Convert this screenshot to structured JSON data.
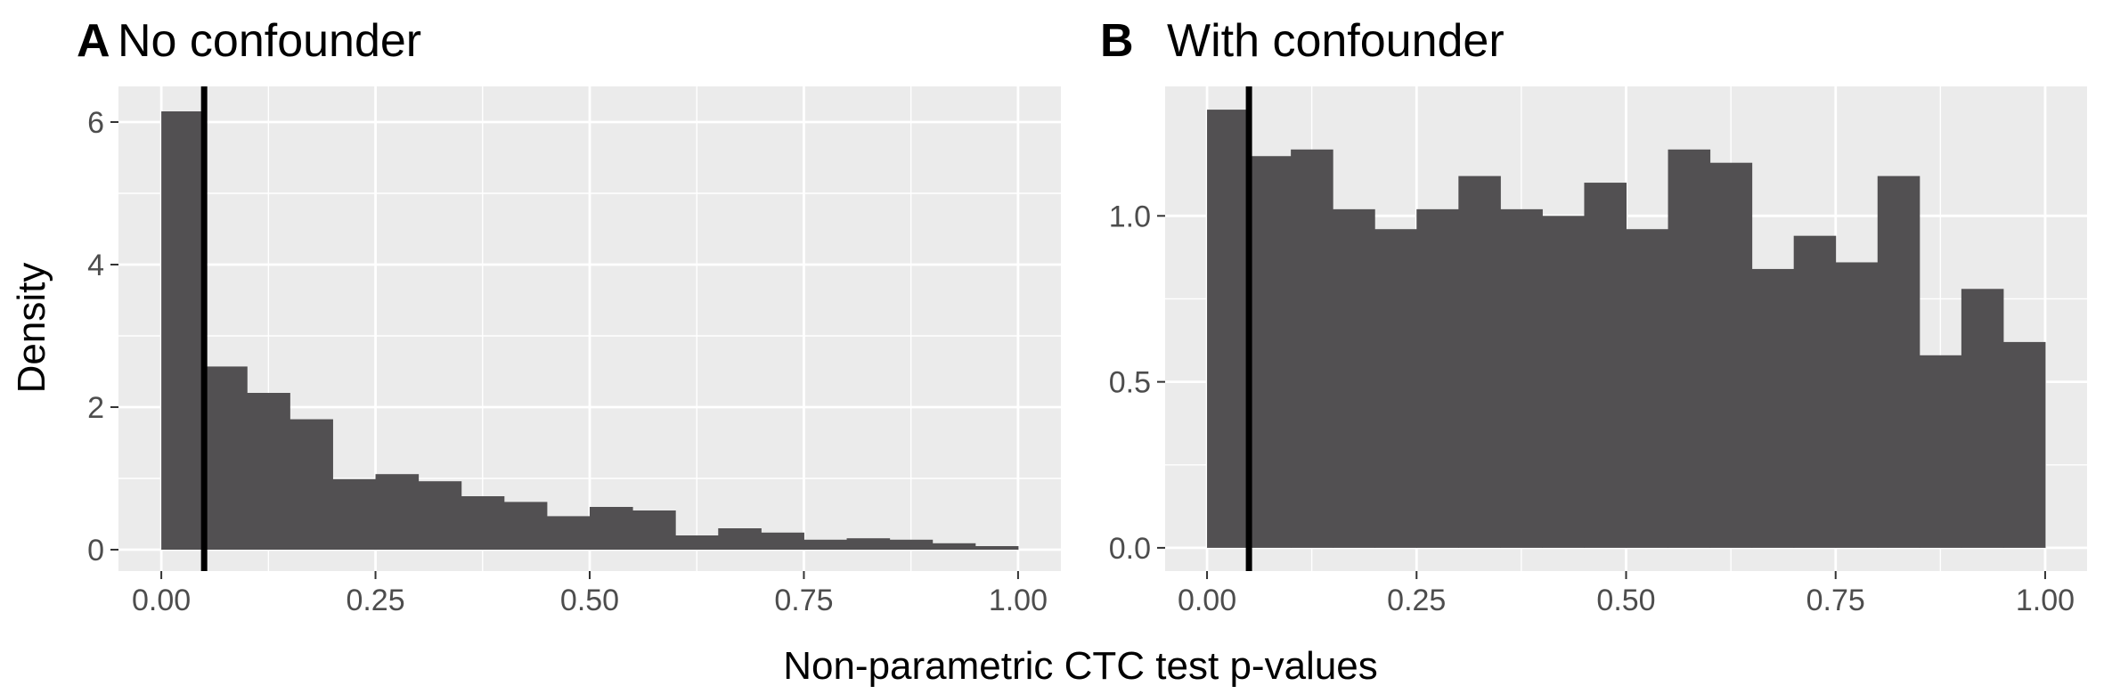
{
  "figure": {
    "xlabel": "Non-parametric CTC test p-values",
    "ylabel": "Density"
  },
  "colors": {
    "panel_background": "#ebebeb",
    "grid_major": "#ffffff",
    "bar_fill": "#525052",
    "threshold_line": "#000000",
    "tick_label": "#4d4d4d"
  },
  "chart_data": [
    {
      "type": "bar",
      "panel": "A",
      "title": "No confounder",
      "bin_width": 0.05,
      "x": [
        0.025,
        0.075,
        0.125,
        0.175,
        0.225,
        0.275,
        0.325,
        0.375,
        0.425,
        0.475,
        0.525,
        0.575,
        0.625,
        0.675,
        0.725,
        0.775,
        0.825,
        0.875,
        0.925,
        0.975
      ],
      "values": [
        6.15,
        2.57,
        2.2,
        1.83,
        0.99,
        1.06,
        0.96,
        0.75,
        0.67,
        0.47,
        0.6,
        0.55,
        0.2,
        0.3,
        0.24,
        0.14,
        0.16,
        0.14,
        0.09,
        0.05
      ],
      "vline": 0.05,
      "xlim": [
        -0.05,
        1.05
      ],
      "ylim": [
        -0.3,
        6.5
      ],
      "xticks": [
        0,
        0.25,
        0.5,
        0.75,
        1
      ],
      "xtick_labels": [
        "0.00",
        "0.25",
        "0.50",
        "0.75",
        "1.00"
      ],
      "yticks": [
        0,
        2,
        4,
        6
      ],
      "ytick_labels": [
        "0",
        "2",
        "4",
        "6"
      ],
      "grid": true
    },
    {
      "type": "bar",
      "panel": "B",
      "title": "With confounder",
      "bin_width": 0.05,
      "x": [
        0.025,
        0.075,
        0.125,
        0.175,
        0.225,
        0.275,
        0.325,
        0.375,
        0.425,
        0.475,
        0.525,
        0.575,
        0.625,
        0.675,
        0.725,
        0.775,
        0.825,
        0.875,
        0.925,
        0.975
      ],
      "values": [
        1.32,
        1.18,
        1.2,
        1.02,
        0.96,
        1.02,
        1.12,
        1.02,
        1.0,
        1.1,
        0.96,
        1.2,
        1.16,
        0.84,
        0.94,
        0.86,
        1.12,
        0.58,
        0.78,
        0.62
      ],
      "vline": 0.05,
      "xlim": [
        -0.05,
        1.05
      ],
      "ylim": [
        -0.07,
        1.39
      ],
      "xticks": [
        0,
        0.25,
        0.5,
        0.75,
        1
      ],
      "xtick_labels": [
        "0.00",
        "0.25",
        "0.50",
        "0.75",
        "1.00"
      ],
      "yticks": [
        0,
        0.5,
        1.0
      ],
      "ytick_labels": [
        "0.0",
        "0.5",
        "1.0"
      ],
      "grid": true
    }
  ]
}
